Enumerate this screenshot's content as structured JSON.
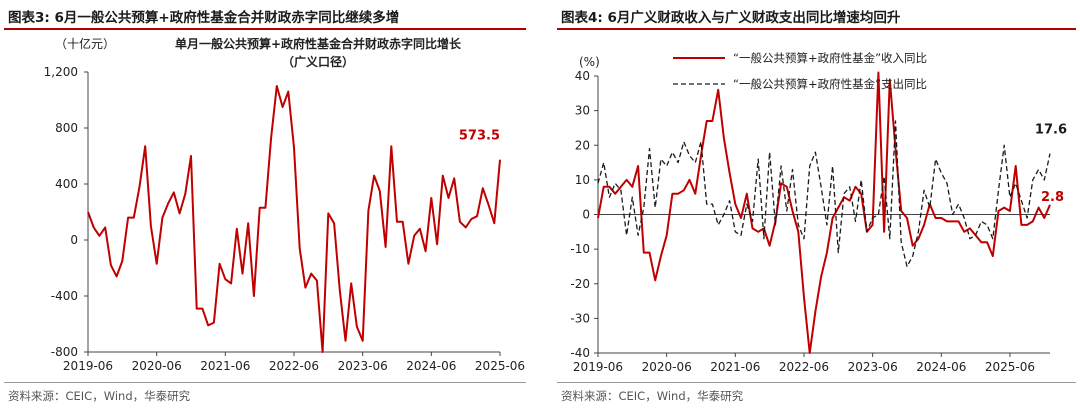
{
  "panels": [
    {
      "title": "图表3:  6月一般公共预算+政府性基金合并财政赤字同比继续多增",
      "source": "资料来源：CEIC，Wind，华泰研究"
    },
    {
      "title": "图表4:  6月广义财政收入与广义财政支出同比增速均回升",
      "source": "资料来源：CEIC，Wind，华泰研究"
    }
  ],
  "chart_data": [
    {
      "type": "line",
      "unit_label": "（十亿元）",
      "title": "单月一般公共预算+政府性基金合并财政赤字同比增长",
      "subtitle": "（广义口径）",
      "x_ticks": [
        "2019-06",
        "2020-06",
        "2021-06",
        "2022-06",
        "2023-06",
        "2024-06",
        "2025-06"
      ],
      "y_ticks": [
        "1,200",
        "800",
        "400",
        "0",
        "-400",
        "-800"
      ],
      "ylim": [
        -800,
        1200
      ],
      "color": "#c00000",
      "end_label": "573.5",
      "series": [
        {
          "values": [
            200,
            90,
            30,
            90,
            -180,
            -260,
            -150,
            160,
            160,
            380,
            670,
            100,
            -170,
            160,
            260,
            340,
            190,
            330,
            600,
            -490,
            -490,
            -610,
            -590,
            -170,
            -280,
            -310,
            80,
            -240,
            120,
            -400,
            230,
            230,
            730,
            1100,
            950,
            1060,
            660,
            -60,
            -340,
            -240,
            -290,
            -800,
            190,
            120,
            -360,
            -720,
            -310,
            -620,
            -720,
            210,
            460,
            350,
            -50,
            670,
            130,
            130,
            -170,
            30,
            80,
            -80,
            300,
            -30,
            460,
            300,
            440,
            130,
            90,
            150,
            170,
            370,
            250,
            120,
            573.5
          ]
        }
      ]
    },
    {
      "type": "line",
      "unit_label": "(%)",
      "x_ticks": [
        "2019-06",
        "2020-06",
        "2021-06",
        "2022-06",
        "2023-06",
        "2024-06",
        "2025-06"
      ],
      "y_ticks": [
        "40",
        "30",
        "20",
        "10",
        "0",
        "-10",
        "-20",
        "-30",
        "-40"
      ],
      "ylim": [
        -40,
        40
      ],
      "series": [
        {
          "name": "“一般公共预算+政府性基金”收入同比",
          "color": "#c00000",
          "dash": false,
          "end_label": "2.8",
          "values": [
            -1,
            8,
            8,
            6,
            8,
            10,
            8,
            14,
            -11,
            -11,
            -19,
            -12,
            -6,
            6,
            6,
            7,
            10,
            6,
            17,
            27,
            27,
            36,
            22,
            12,
            3,
            -1,
            6,
            -4,
            -5,
            -4,
            -9,
            -2,
            9,
            8,
            1,
            -5,
            -24,
            -40,
            -28,
            -18,
            -11,
            -1,
            2,
            5,
            4,
            8,
            6,
            -5,
            -3,
            41,
            -5,
            39,
            19,
            1,
            -1,
            -9,
            -7,
            -3,
            3,
            -1,
            -1,
            -2,
            -2,
            -2,
            -5,
            -4,
            -6,
            -8,
            -8,
            -12,
            1,
            2,
            1,
            14,
            -3,
            -3,
            -2,
            2,
            -1,
            2.8
          ]
        },
        {
          "name": "“一般公共预算+政府性基金”支出同比",
          "color": "#1a1a1a",
          "dash": true,
          "end_label": "17.6",
          "values": [
            9,
            15,
            5,
            9,
            7,
            -6,
            5,
            -6,
            2,
            19,
            2,
            16,
            14,
            18,
            15,
            21,
            17,
            15,
            21,
            3,
            3,
            -3,
            0,
            4,
            -5,
            -6,
            3,
            -2,
            16,
            -7,
            18,
            -3,
            14,
            1,
            13,
            -3,
            -7,
            14,
            18,
            8,
            -3,
            14,
            -11,
            6,
            8,
            -2,
            10,
            -5,
            -1,
            0,
            11,
            -7,
            27,
            -8,
            -15,
            -12,
            -5,
            7,
            2,
            16,
            12,
            9,
            0,
            3,
            -1,
            -7,
            -6,
            -2,
            -3,
            -7,
            7,
            20,
            5,
            9,
            4,
            -1,
            10,
            13,
            10,
            17.6
          ]
        }
      ]
    }
  ]
}
